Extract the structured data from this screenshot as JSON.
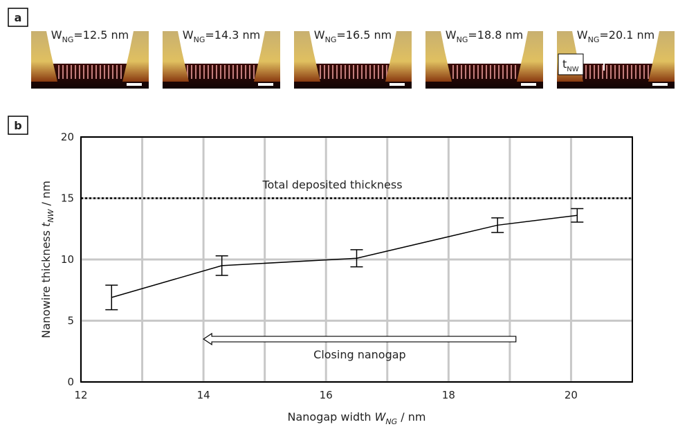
{
  "panel_a": {
    "label": "a",
    "images": [
      {
        "label_base": "W",
        "label_sub": "NG",
        "label_rest": "=12.5 nm"
      },
      {
        "label_base": "W",
        "label_sub": "NG",
        "label_rest": "=14.3 nm"
      },
      {
        "label_base": "W",
        "label_sub": "NG",
        "label_rest": "=16.5 nm"
      },
      {
        "label_base": "W",
        "label_sub": "NG",
        "label_rest": "=18.8 nm"
      },
      {
        "label_base": "W",
        "label_sub": "NG",
        "label_rest": "=20.1 nm"
      }
    ],
    "annotation": {
      "base": "t",
      "sub": "NW"
    }
  },
  "chart_data": {
    "type": "line",
    "panel_label": "b",
    "x": [
      12.5,
      14.3,
      16.5,
      18.8,
      20.1
    ],
    "values": [
      6.9,
      9.5,
      10.1,
      12.8,
      13.6
    ],
    "errors": [
      1.0,
      0.8,
      0.7,
      0.6,
      0.55
    ],
    "color": "#000000",
    "xlim": [
      12,
      21
    ],
    "xticks": [
      12,
      14,
      16,
      18,
      20
    ],
    "xminor_grid": [
      13,
      15,
      17,
      19
    ],
    "ylim": [
      0,
      20
    ],
    "yticks": [
      0,
      5,
      10,
      15,
      20
    ],
    "grid": true,
    "xlabel": [
      {
        "text": "Nanogap width "
      },
      {
        "text": "W",
        "italic": true
      },
      {
        "text": "NG",
        "italic": true,
        "sub": true
      },
      {
        "text": " / nm"
      }
    ],
    "ylabel": [
      {
        "text": "Nanowire thickness "
      },
      {
        "text": "t",
        "italic": true
      },
      {
        "text": "NW",
        "italic": true,
        "sub": true
      },
      {
        "text": " / nm"
      }
    ],
    "reference_line": {
      "y": 15,
      "label": "Total deposited thickness"
    },
    "arrow": {
      "label": "Closing nanogap",
      "from": 19.1,
      "to": 14,
      "y": 3.5
    }
  }
}
